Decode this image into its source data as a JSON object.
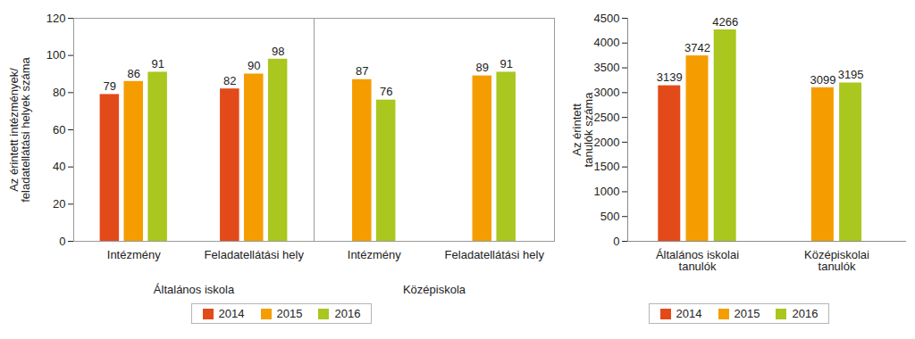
{
  "chart_data": [
    {
      "type": "bar",
      "categories": [
        "Intézmény",
        "Feladatellátási hely",
        "Intézmény",
        "Feladatellátási hely"
      ],
      "category_groups": [
        "Általános iskola",
        "Általános iskola",
        "Középiskola",
        "Középiskola"
      ],
      "y_label": "Az érintett intézmények/ feladatellátási helyek száma",
      "series": [
        {
          "name": "2014",
          "color": "#e34a1a",
          "values": [
            79,
            82,
            null,
            null
          ]
        },
        {
          "name": "2015",
          "color": "#f59d00",
          "values": [
            86,
            90,
            87,
            89
          ]
        },
        {
          "name": "2016",
          "color": "#a9c71f",
          "values": [
            91,
            98,
            76,
            91
          ]
        }
      ],
      "ylim": [
        0,
        120
      ],
      "yticks": [
        0,
        20,
        40,
        60,
        80,
        100,
        120
      ],
      "data_labels": true,
      "grid": false,
      "legend": "bottom"
    },
    {
      "type": "bar",
      "categories": [
        "Általános iskolai tanulók",
        "Középiskolai tanulók"
      ],
      "y_label": "Az érintett tanulók száma",
      "series": [
        {
          "name": "2014",
          "color": "#e34a1a",
          "values": [
            3139,
            null
          ]
        },
        {
          "name": "2015",
          "color": "#f59d00",
          "values": [
            3742,
            3099
          ]
        },
        {
          "name": "2016",
          "color": "#a9c71f",
          "values": [
            4266,
            3195
          ]
        }
      ],
      "ylim": [
        0,
        4500
      ],
      "yticks": [
        0,
        500,
        1000,
        1500,
        2000,
        2500,
        3000,
        3500,
        4000,
        4500
      ],
      "data_labels": true,
      "grid": false,
      "legend": "bottom"
    }
  ]
}
